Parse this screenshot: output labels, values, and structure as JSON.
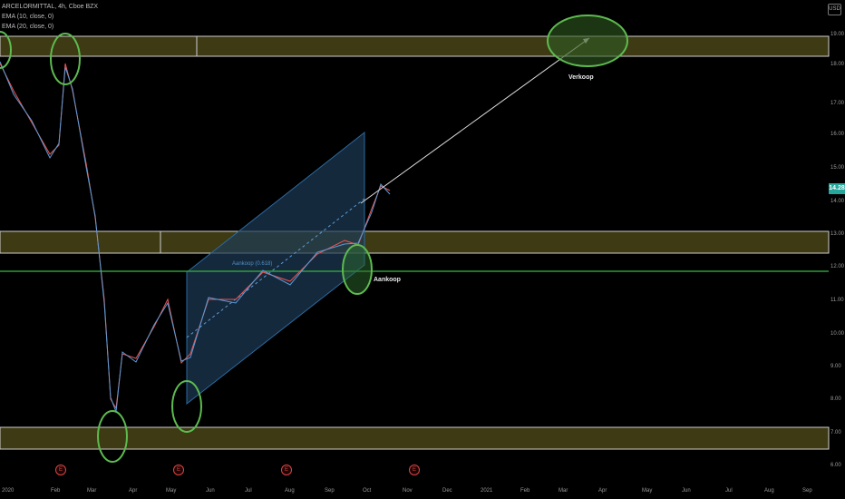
{
  "legend": {
    "symbol_line": "ARCELORMITTAL, 4h, Cboe BZX",
    "ema1": "EMA (10, close, 0)",
    "ema2": "EMA (20, close, 0)"
  },
  "currency": "USD",
  "last_price": "14.28",
  "y_ticks": [
    "19.00",
    "18.00",
    "17.00",
    "16.00",
    "15.00",
    "14.00",
    "13.00",
    "12.00",
    "11.00",
    "10.00",
    "9.00",
    "8.00",
    "7.00",
    "6.00"
  ],
  "x_ticks": [
    "2020",
    "Feb",
    "Mar",
    "Apr",
    "May",
    "Jun",
    "Jul",
    "Aug",
    "Sep",
    "Oct",
    "Nov",
    "Dec",
    "2021",
    "Feb",
    "Mar",
    "Apr",
    "May",
    "Jun",
    "Jul",
    "Aug",
    "Sep"
  ],
  "annotations": {
    "sell": "Verkoop",
    "buy": "Aankoop",
    "channel_label": "Aankoop (0.618)"
  },
  "earnings_marker": "E",
  "colors": {
    "background": "#000000",
    "zone_fill": "#3d3a14",
    "zone_border": "#cfcfcf",
    "support_line": "#2e9d3a",
    "channel_fill": "#1c3a55",
    "circle_stroke": "#5dbb4f",
    "up_candle": "#26a69a",
    "down_candle": "#ef5350",
    "ema_fast": "#5b9bd5",
    "ema_slow": "#c8a2d8",
    "price_badge": "#26a69a"
  }
}
